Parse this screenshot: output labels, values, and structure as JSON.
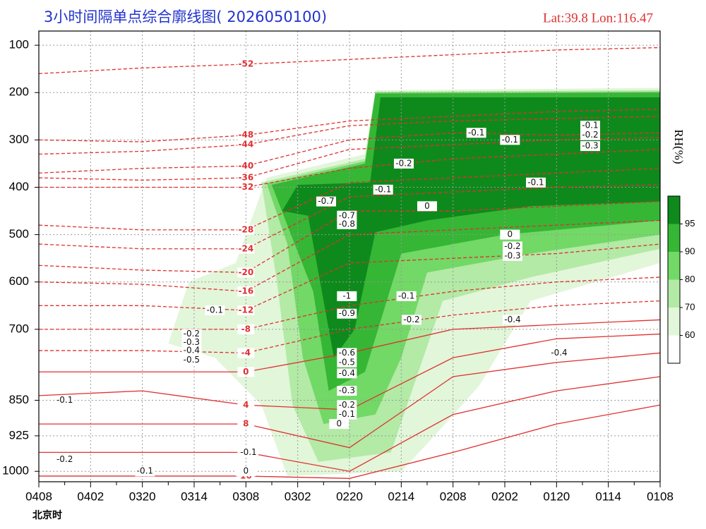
{
  "chart_data": {
    "type": "cross-section",
    "title": "3小时间隔单点综合廓线图( 2026050100)",
    "location": "Lat:39.8  Lon:116.47",
    "xlabel": "北京时",
    "categories": [
      "0408",
      "0402",
      "0320",
      "0314",
      "0308",
      "0302",
      "0220",
      "0214",
      "0208",
      "0202",
      "0120",
      "0114",
      "0108"
    ],
    "ylim": [
      70,
      1022
    ],
    "yticks": [
      100,
      200,
      300,
      400,
      500,
      600,
      700,
      850,
      925,
      1000
    ],
    "grid": true,
    "colorbar_label": "RH(%)",
    "rh_ticks": [
      60,
      70,
      80,
      90,
      95
    ],
    "rh_colors": [
      "#ffffff",
      "#e2f6da",
      "#b2eaa6",
      "#72d866",
      "#35b635",
      "#0e8a1c"
    ],
    "rh_areas": [
      {
        "level": 60,
        "points": [
          [
            2.5,
            730
          ],
          [
            2.9,
            600
          ],
          [
            3.8,
            560
          ],
          [
            4.4,
            380
          ],
          [
            6.3,
            330
          ],
          [
            6.5,
            195
          ],
          [
            12,
            190
          ],
          [
            12,
            560
          ],
          [
            9.5,
            640
          ],
          [
            8.5,
            820
          ],
          [
            7.6,
            930
          ],
          [
            7,
            1000
          ],
          [
            4.8,
            1010
          ],
          [
            4.3,
            860
          ],
          [
            3.4,
            760
          ]
        ]
      },
      {
        "level": 70,
        "points": [
          [
            4.3,
            390
          ],
          [
            6.3,
            340
          ],
          [
            6.5,
            198
          ],
          [
            12,
            195
          ],
          [
            12,
            530
          ],
          [
            9.5,
            590
          ],
          [
            7.8,
            640
          ],
          [
            7.3,
            800
          ],
          [
            6.8,
            960
          ],
          [
            5.4,
            980
          ],
          [
            4.9,
            860
          ],
          [
            4.6,
            600
          ]
        ]
      },
      {
        "level": 80,
        "points": [
          [
            4.4,
            392
          ],
          [
            6.3,
            345
          ],
          [
            6.5,
            200
          ],
          [
            12,
            198
          ],
          [
            12,
            500
          ],
          [
            9.5,
            540
          ],
          [
            7.5,
            580
          ],
          [
            7,
            760
          ],
          [
            6.5,
            880
          ],
          [
            5.5,
            900
          ],
          [
            5.1,
            760
          ],
          [
            4.8,
            520
          ]
        ]
      },
      {
        "level": 90,
        "points": [
          [
            4.5,
            395
          ],
          [
            6.3,
            350
          ],
          [
            6.5,
            202
          ],
          [
            12,
            200
          ],
          [
            12,
            470
          ],
          [
            9,
            500
          ],
          [
            7,
            540
          ],
          [
            6.3,
            790
          ],
          [
            5.6,
            830
          ],
          [
            5.3,
            620
          ],
          [
            4.8,
            480
          ]
        ]
      },
      {
        "level": 95,
        "points": [
          [
            5,
            395
          ],
          [
            6.4,
            390
          ],
          [
            6.6,
            210
          ],
          [
            12,
            210
          ],
          [
            12,
            430
          ],
          [
            9.5,
            440
          ],
          [
            7.5,
            470
          ],
          [
            6.5,
            495
          ],
          [
            6.1,
            700
          ],
          [
            5.7,
            760
          ],
          [
            5.4,
            580
          ],
          [
            5.2,
            460
          ],
          [
            4.7,
            450
          ]
        ]
      }
    ],
    "isotherm_x": [
      0,
      2,
      4,
      6,
      8,
      10,
      12
    ],
    "isotherms": [
      {
        "level": -52,
        "p": [
          160,
          148,
          140,
          130,
          120,
          110,
          105
        ]
      },
      {
        "level": -48,
        "p": [
          300,
          304,
          290,
          260,
          250,
          240,
          235
        ]
      },
      {
        "level": -44,
        "p": [
          330,
          324,
          310,
          270,
          260,
          255,
          250
        ]
      },
      {
        "level": -40,
        "p": [
          370,
          360,
          355,
          300,
          285,
          290,
          285
        ]
      },
      {
        "level": -36,
        "p": [
          380,
          385,
          380,
          320,
          310,
          300,
          295
        ]
      },
      {
        "level": -32,
        "p": [
          400,
          400,
          400,
          360,
          340,
          330,
          320
        ]
      },
      {
        "level": -28,
        "p": [
          480,
          490,
          490,
          390,
          380,
          370,
          360
        ]
      },
      {
        "level": -24,
        "p": [
          520,
          530,
          530,
          420,
          410,
          400,
          395
        ]
      },
      {
        "level": -20,
        "p": [
          565,
          575,
          580,
          450,
          450,
          440,
          430
        ]
      },
      {
        "level": -16,
        "p": [
          600,
          605,
          620,
          500,
          490,
          480,
          470
        ]
      },
      {
        "level": -12,
        "p": [
          650,
          650,
          660,
          560,
          550,
          540,
          520
        ]
      },
      {
        "level": -8,
        "p": [
          700,
          700,
          700,
          650,
          620,
          600,
          590
        ]
      },
      {
        "level": -4,
        "p": [
          745,
          745,
          750,
          700,
          670,
          650,
          640
        ]
      },
      {
        "level": 0,
        "p": [
          790,
          790,
          790,
          750,
          700,
          690,
          680
        ]
      },
      {
        "level": 4,
        "p": [
          840,
          830,
          860,
          870,
          760,
          720,
          710
        ]
      },
      {
        "level": 8,
        "p": [
          900,
          900,
          900,
          950,
          800,
          770,
          750
        ]
      },
      {
        "level": 12,
        "p": [
          960,
          960,
          960,
          1000,
          880,
          830,
          800
        ]
      },
      {
        "level": 16,
        "p": [
          1010,
          1010,
          1010,
          1015,
          960,
          900,
          860
        ]
      }
    ],
    "omega_labels": [
      {
        "value": -0.7,
        "x": 5.55,
        "p": 430
      },
      {
        "value": -0.7,
        "x": 5.95,
        "p": 460
      },
      {
        "value": -0.8,
        "x": 5.95,
        "p": 478
      },
      {
        "value": -1,
        "x": 5.95,
        "p": 630
      },
      {
        "value": -0.9,
        "x": 5.95,
        "p": 667
      },
      {
        "value": -0.6,
        "x": 5.95,
        "p": 750
      },
      {
        "value": -0.5,
        "x": 5.95,
        "p": 770
      },
      {
        "value": -0.4,
        "x": 5.95,
        "p": 793
      },
      {
        "value": -0.3,
        "x": 5.95,
        "p": 830
      },
      {
        "value": -0.2,
        "x": 5.95,
        "p": 860
      },
      {
        "value": -0.1,
        "x": 5.95,
        "p": 880
      },
      {
        "value": -0.1,
        "x": 6.65,
        "p": 405
      },
      {
        "value": -0.2,
        "x": 7.05,
        "p": 350
      },
      {
        "value": -0.1,
        "x": 8.45,
        "p": 285
      },
      {
        "value": -0.1,
        "x": 9.1,
        "p": 300
      },
      {
        "value": -0.3,
        "x": 10.65,
        "p": 313
      },
      {
        "value": -0.1,
        "x": 9.6,
        "p": 390
      },
      {
        "value": -0.2,
        "x": 9.15,
        "p": 525
      },
      {
        "value": -0.3,
        "x": 9.15,
        "p": 545
      },
      {
        "value": -0.4,
        "x": 9.15,
        "p": 680
      },
      {
        "value": -0.4,
        "x": 10.05,
        "p": 750
      },
      {
        "value": -0.2,
        "x": 7.2,
        "p": 680
      },
      {
        "value": -0.1,
        "x": 7.1,
        "p": 630
      },
      {
        "value": -0.2,
        "x": 2.95,
        "p": 710
      },
      {
        "value": -0.3,
        "x": 2.95,
        "p": 728
      },
      {
        "value": -0.4,
        "x": 2.95,
        "p": 745
      },
      {
        "value": -0.5,
        "x": 2.95,
        "p": 765
      },
      {
        "value": -0.1,
        "x": 3.4,
        "p": 660
      },
      {
        "value": -0.1,
        "x": 0.5,
        "p": 850
      },
      {
        "value": -0.2,
        "x": 0.5,
        "p": 975
      },
      {
        "value": -0.1,
        "x": 2.05,
        "p": 1000
      },
      {
        "value": -0.1,
        "x": 4.05,
        "p": 960
      },
      {
        "value": 0,
        "x": 4.0,
        "p": 1000
      },
      {
        "value": 0,
        "x": 5.8,
        "p": 900
      },
      {
        "value": -0.1,
        "x": 10.65,
        "p": 270
      },
      {
        "value": -0.2,
        "x": 10.65,
        "p": 290
      },
      {
        "value": 0,
        "x": 7.5,
        "p": 440
      },
      {
        "value": 0,
        "x": 9.1,
        "p": 500
      }
    ]
  }
}
